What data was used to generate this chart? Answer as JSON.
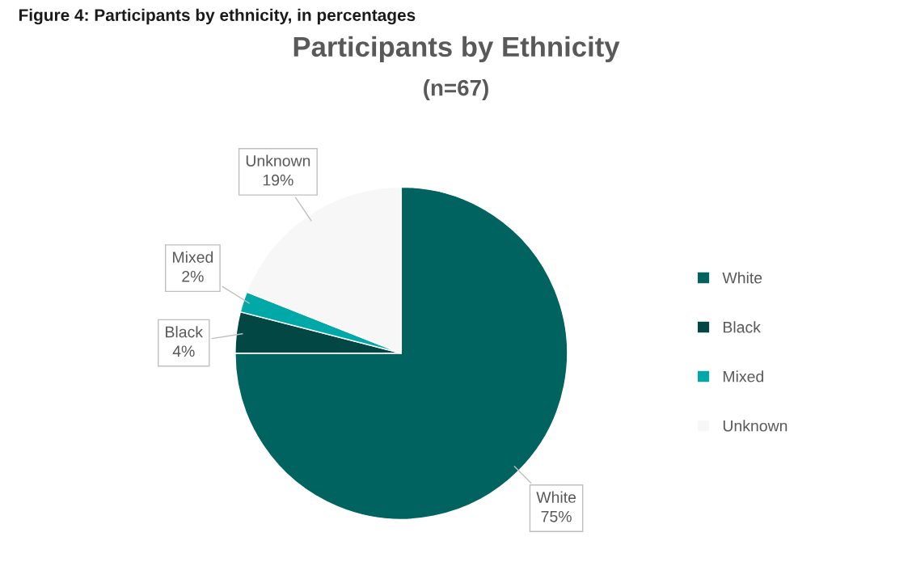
{
  "chart_data": {
    "type": "pie",
    "title": "Participants by Ethnicity",
    "subtitle": "(n=67)",
    "annotations": [
      "Figure 4: Participants by ethnicity, in percentages"
    ],
    "categories": [
      "White",
      "Black",
      "Mixed",
      "Unknown"
    ],
    "values": [
      75,
      4,
      2,
      19
    ],
    "value_labels": [
      "75%",
      "4%",
      "2%",
      "19%"
    ],
    "colors": [
      "#006360",
      "#034745",
      "#00a9a8",
      "#f7f7f7"
    ],
    "legend": "right"
  }
}
